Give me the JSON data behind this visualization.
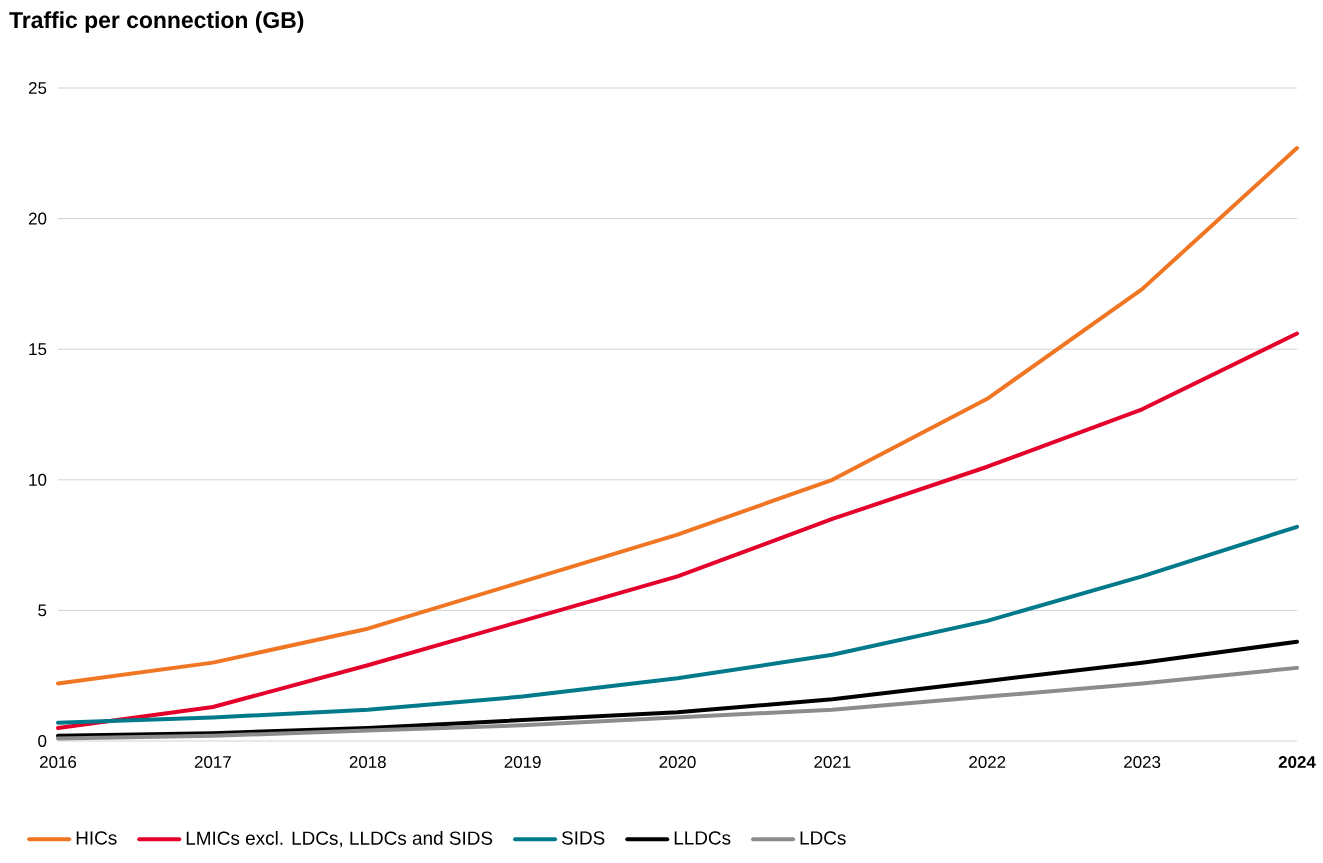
{
  "chart_data": {
    "type": "line",
    "title": "Traffic per connection (GB)",
    "x": [
      2016,
      2017,
      2018,
      2019,
      2020,
      2021,
      2022,
      2023,
      2024
    ],
    "series": [
      {
        "name": "HICs",
        "color": "#f07623",
        "values": [
          2.2,
          3.0,
          4.3,
          6.1,
          7.9,
          10.0,
          13.1,
          17.3,
          22.7
        ]
      },
      {
        "name": "LMICs excl. LDCs, LLDCs and SIDS",
        "color": "#e4002b",
        "values": [
          0.5,
          1.3,
          2.9,
          4.6,
          6.3,
          8.5,
          10.5,
          12.7,
          15.6
        ]
      },
      {
        "name": "SIDS",
        "color": "#007a8a",
        "values": [
          0.7,
          0.9,
          1.2,
          1.7,
          2.4,
          3.3,
          4.6,
          6.3,
          8.2
        ]
      },
      {
        "name": "LLDCs",
        "color": "#000000",
        "values": [
          0.2,
          0.3,
          0.5,
          0.8,
          1.1,
          1.6,
          2.3,
          3.0,
          3.8
        ]
      },
      {
        "name": "LDCs",
        "color": "#8c8c8c",
        "values": [
          0.1,
          0.2,
          0.4,
          0.6,
          0.9,
          1.2,
          1.7,
          2.2,
          2.8
        ]
      }
    ],
    "xlim": [
      2016,
      2024
    ],
    "ylim": [
      0,
      25
    ],
    "xticks": [
      2016,
      2017,
      2018,
      2019,
      2020,
      2021,
      2022,
      2023,
      {
        "value": 2024,
        "label": "**2024**"
      }
    ],
    "yticks": [
      0,
      5,
      10,
      15,
      20,
      25
    ],
    "grid": "y",
    "legend": "bottom",
    "marker": "none",
    "line_style": "solid"
  }
}
